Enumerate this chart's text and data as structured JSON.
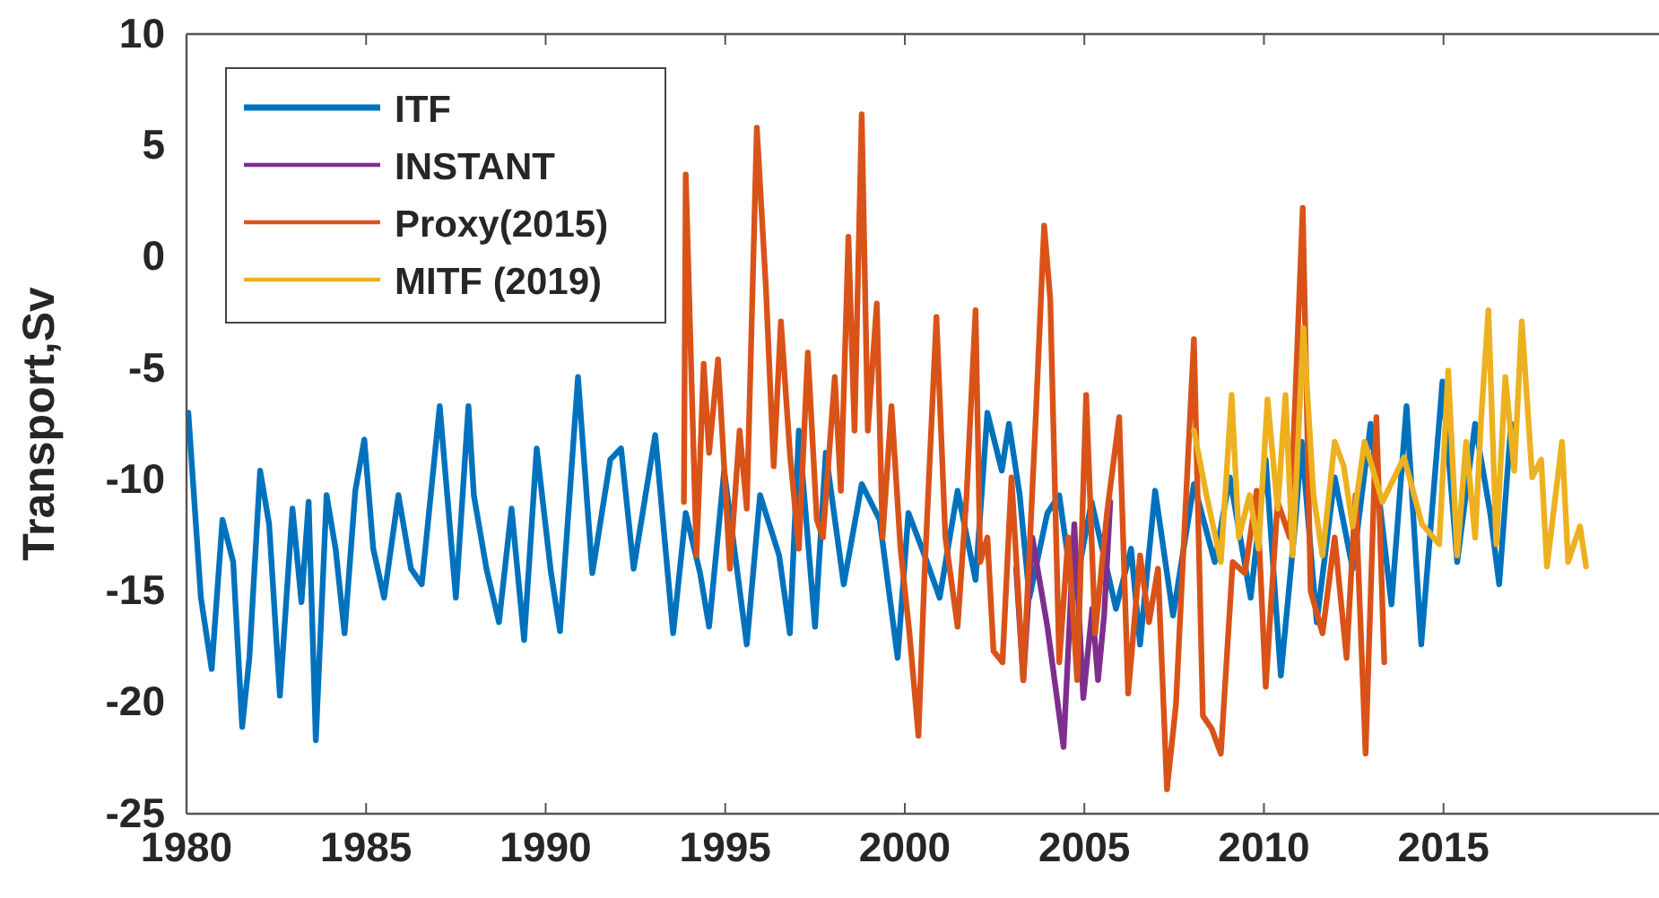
{
  "chart_data": {
    "type": "line",
    "ylabel": "Transport,Sv",
    "xlim": [
      1980,
      2021
    ],
    "ylim": [
      -25,
      10
    ],
    "xticks": [
      1980,
      1985,
      1990,
      1995,
      2000,
      2005,
      2010,
      2015
    ],
    "yticks": [
      -25,
      -20,
      -15,
      -10,
      -5,
      0,
      5,
      10
    ],
    "grid": false,
    "legend": "top left",
    "line_style": "solid",
    "marker": "none",
    "series": [
      {
        "name": "ITF",
        "color": "#0072bd",
        "x": [
          1980.05,
          1980.4,
          1980.7,
          1981.0,
          1981.3,
          1981.55,
          1981.75,
          1982.05,
          1982.3,
          1982.6,
          1982.95,
          1983.2,
          1983.4,
          1983.6,
          1983.9,
          1984.15,
          1984.4,
          1984.7,
          1984.95,
          1985.2,
          1985.5,
          1985.9,
          1986.25,
          1986.55,
          1987.05,
          1987.5,
          1987.85,
          1988.0,
          1988.35,
          1988.7,
          1989.05,
          1989.4,
          1989.75,
          1990.15,
          1990.4,
          1990.9,
          1991.3,
          1991.8,
          1992.1,
          1992.45,
          1993.05,
          1993.55,
          1993.9,
          1994.3,
          1994.55,
          1994.97,
          1995.6,
          1995.97,
          1996.5,
          1996.8,
          1997.05,
          1997.5,
          1997.8,
          1998.3,
          1998.8,
          1999.3,
          1999.8,
          2000.1,
          2000.55,
          2000.97,
          2001.47,
          2001.97,
          2002.3,
          2002.7,
          2002.9,
          2003.2,
          2003.47,
          2003.97,
          2004.3,
          2004.7,
          2005.2,
          2005.88,
          2006.3,
          2006.55,
          2006.97,
          2007.47,
          2008.05,
          2008.63,
          2009.05,
          2009.63,
          2010.05,
          2010.47,
          2010.88,
          2011.05,
          2011.47,
          2011.97,
          2012.47,
          2012.97,
          2013.55,
          2013.97,
          2014.38,
          2014.97,
          2015.38,
          2015.88,
          2016.3,
          2016.55,
          2016.88
        ],
        "values": [
          -7.0,
          -15.3,
          -18.5,
          -11.8,
          -13.7,
          -21.1,
          -18,
          -9.6,
          -12,
          -19.7,
          -11.3,
          -15.5,
          -11,
          -21.7,
          -10.7,
          -13.1,
          -16.9,
          -10.5,
          -8.2,
          -13.1,
          -15.3,
          -10.7,
          -14,
          -14.7,
          -6.7,
          -15.3,
          -6.7,
          -10.7,
          -14,
          -16.4,
          -11.3,
          -17.2,
          -8.6,
          -14.2,
          -16.8,
          -5.4,
          -14.2,
          -9.1,
          -8.6,
          -14,
          -8,
          -16.9,
          -11.5,
          -14.2,
          -16.6,
          -9.6,
          -17.4,
          -10.7,
          -13.4,
          -16.9,
          -7.8,
          -16.6,
          -8.8,
          -14.7,
          -10.2,
          -11.8,
          -18,
          -11.5,
          -13.4,
          -15.3,
          -10.5,
          -14.5,
          -7,
          -9.6,
          -7.5,
          -10.7,
          -15.3,
          -11.5,
          -10.7,
          -15.3,
          -11,
          -15.8,
          -13.1,
          -17.4,
          -10.5,
          -16.1,
          -10.2,
          -13.7,
          -9.9,
          -15.3,
          -9.1,
          -18.8,
          -11.8,
          -8.3,
          -16.4,
          -9.9,
          -14,
          -7.5,
          -15.6,
          -6.7,
          -17.4,
          -5.6,
          -13.7,
          -7.5,
          -11.5,
          -14.7,
          -7.5
        ]
      },
      {
        "name": "INSTANT",
        "color": "#7e2f8e",
        "x": [
          2003.1,
          2003.3,
          2003.55,
          2003.97,
          2004.42,
          2004.72,
          2004.97,
          2005.22,
          2005.38,
          2005.55,
          2005.72
        ],
        "values": [
          -14,
          -19,
          -12.6,
          -16.6,
          -22,
          -12,
          -19.8,
          -15.8,
          -19,
          -16.1,
          -11
        ]
      },
      {
        "name": "Proxy(2015)",
        "color": "#d95319",
        "x": [
          1993.85,
          1993.9,
          1994.2,
          1994.4,
          1994.55,
          1994.8,
          1995.13,
          1995.4,
          1995.6,
          1995.88,
          1996.13,
          1996.35,
          1996.55,
          1996.8,
          1997.05,
          1997.3,
          1997.55,
          1997.72,
          1998.05,
          1998.22,
          1998.43,
          1998.6,
          1998.8,
          1998.97,
          1999.22,
          1999.38,
          1999.63,
          1999.88,
          2000.13,
          2000.38,
          2000.55,
          2000.88,
          2001.13,
          2001.47,
          2001.72,
          2001.97,
          2002.1,
          2002.3,
          2002.47,
          2002.72,
          2002.97,
          2003.3,
          2003.63,
          2003.88,
          2004.05,
          2004.3,
          2004.55,
          2004.8,
          2005.05,
          2005.3,
          2005.63,
          2005.97,
          2006.22,
          2006.55,
          2006.8,
          2007.05,
          2007.3,
          2007.55,
          2007.8,
          2008.05,
          2008.3,
          2008.55,
          2008.8,
          2009.13,
          2009.47,
          2009.8,
          2010.05,
          2010.38,
          2010.72,
          2011.08,
          2011.3,
          2011.63,
          2011.97,
          2012.3,
          2012.55,
          2012.83,
          2013.13,
          2013.35
        ],
        "values": [
          -11,
          3.7,
          -13.4,
          -4.8,
          -8.8,
          -4.6,
          -14,
          -7.8,
          -11.3,
          5.8,
          -1.3,
          -9.4,
          -2.9,
          -8.8,
          -13.1,
          -4.3,
          -11.8,
          -12.6,
          -5.4,
          -10.5,
          0.9,
          -7.8,
          6.4,
          -7.8,
          -2.1,
          -12.6,
          -6.7,
          -13.1,
          -16.9,
          -21.5,
          -14.2,
          -2.7,
          -12.6,
          -16.6,
          -10.7,
          -2.4,
          -13.7,
          -12.6,
          -17.7,
          -18.2,
          -9.9,
          -19,
          -7.8,
          1.4,
          -1.9,
          -18.2,
          -12.6,
          -19,
          -6.2,
          -16.9,
          -11.5,
          -7.2,
          -19.6,
          -13.4,
          -16.4,
          -14,
          -23.9,
          -20.1,
          -11.8,
          -3.7,
          -20.6,
          -21.2,
          -22.3,
          -13.7,
          -14.2,
          -10.5,
          -19.3,
          -11,
          -12.6,
          2.2,
          -15,
          -16.9,
          -12.6,
          -18,
          -10.7,
          -22.3,
          -7.2,
          -18.2
        ]
      },
      {
        "name": "MITF (2019)",
        "color": "#edb120",
        "x": [
          2008.05,
          2008.4,
          2008.8,
          2009.1,
          2009.3,
          2009.6,
          2009.85,
          2010.1,
          2010.38,
          2010.6,
          2010.8,
          2011.1,
          2011.38,
          2011.63,
          2011.97,
          2012.22,
          2012.47,
          2012.8,
          2013.3,
          2013.9,
          2014.4,
          2014.88,
          2015.13,
          2015.38,
          2015.63,
          2015.88,
          2016.05,
          2016.25,
          2016.47,
          2016.72,
          2016.97,
          2017.18,
          2017.47,
          2017.72,
          2017.88,
          2018.3,
          2018.47,
          2018.8,
          2018.97
        ],
        "values": [
          -7.8,
          -10.7,
          -13.7,
          -6.2,
          -12.6,
          -10.7,
          -13.1,
          -6.4,
          -11.3,
          -6.2,
          -13.4,
          -3.2,
          -10.7,
          -13.4,
          -8.3,
          -9.4,
          -12.1,
          -8.3,
          -11,
          -9,
          -12,
          -12.9,
          -5.1,
          -13.4,
          -8.3,
          -12.6,
          -7.2,
          -2.4,
          -12.9,
          -5.4,
          -9.6,
          -2.9,
          -9.9,
          -9.1,
          -13.9,
          -8.3,
          -13.7,
          -12.1,
          -13.9
        ]
      }
    ]
  }
}
